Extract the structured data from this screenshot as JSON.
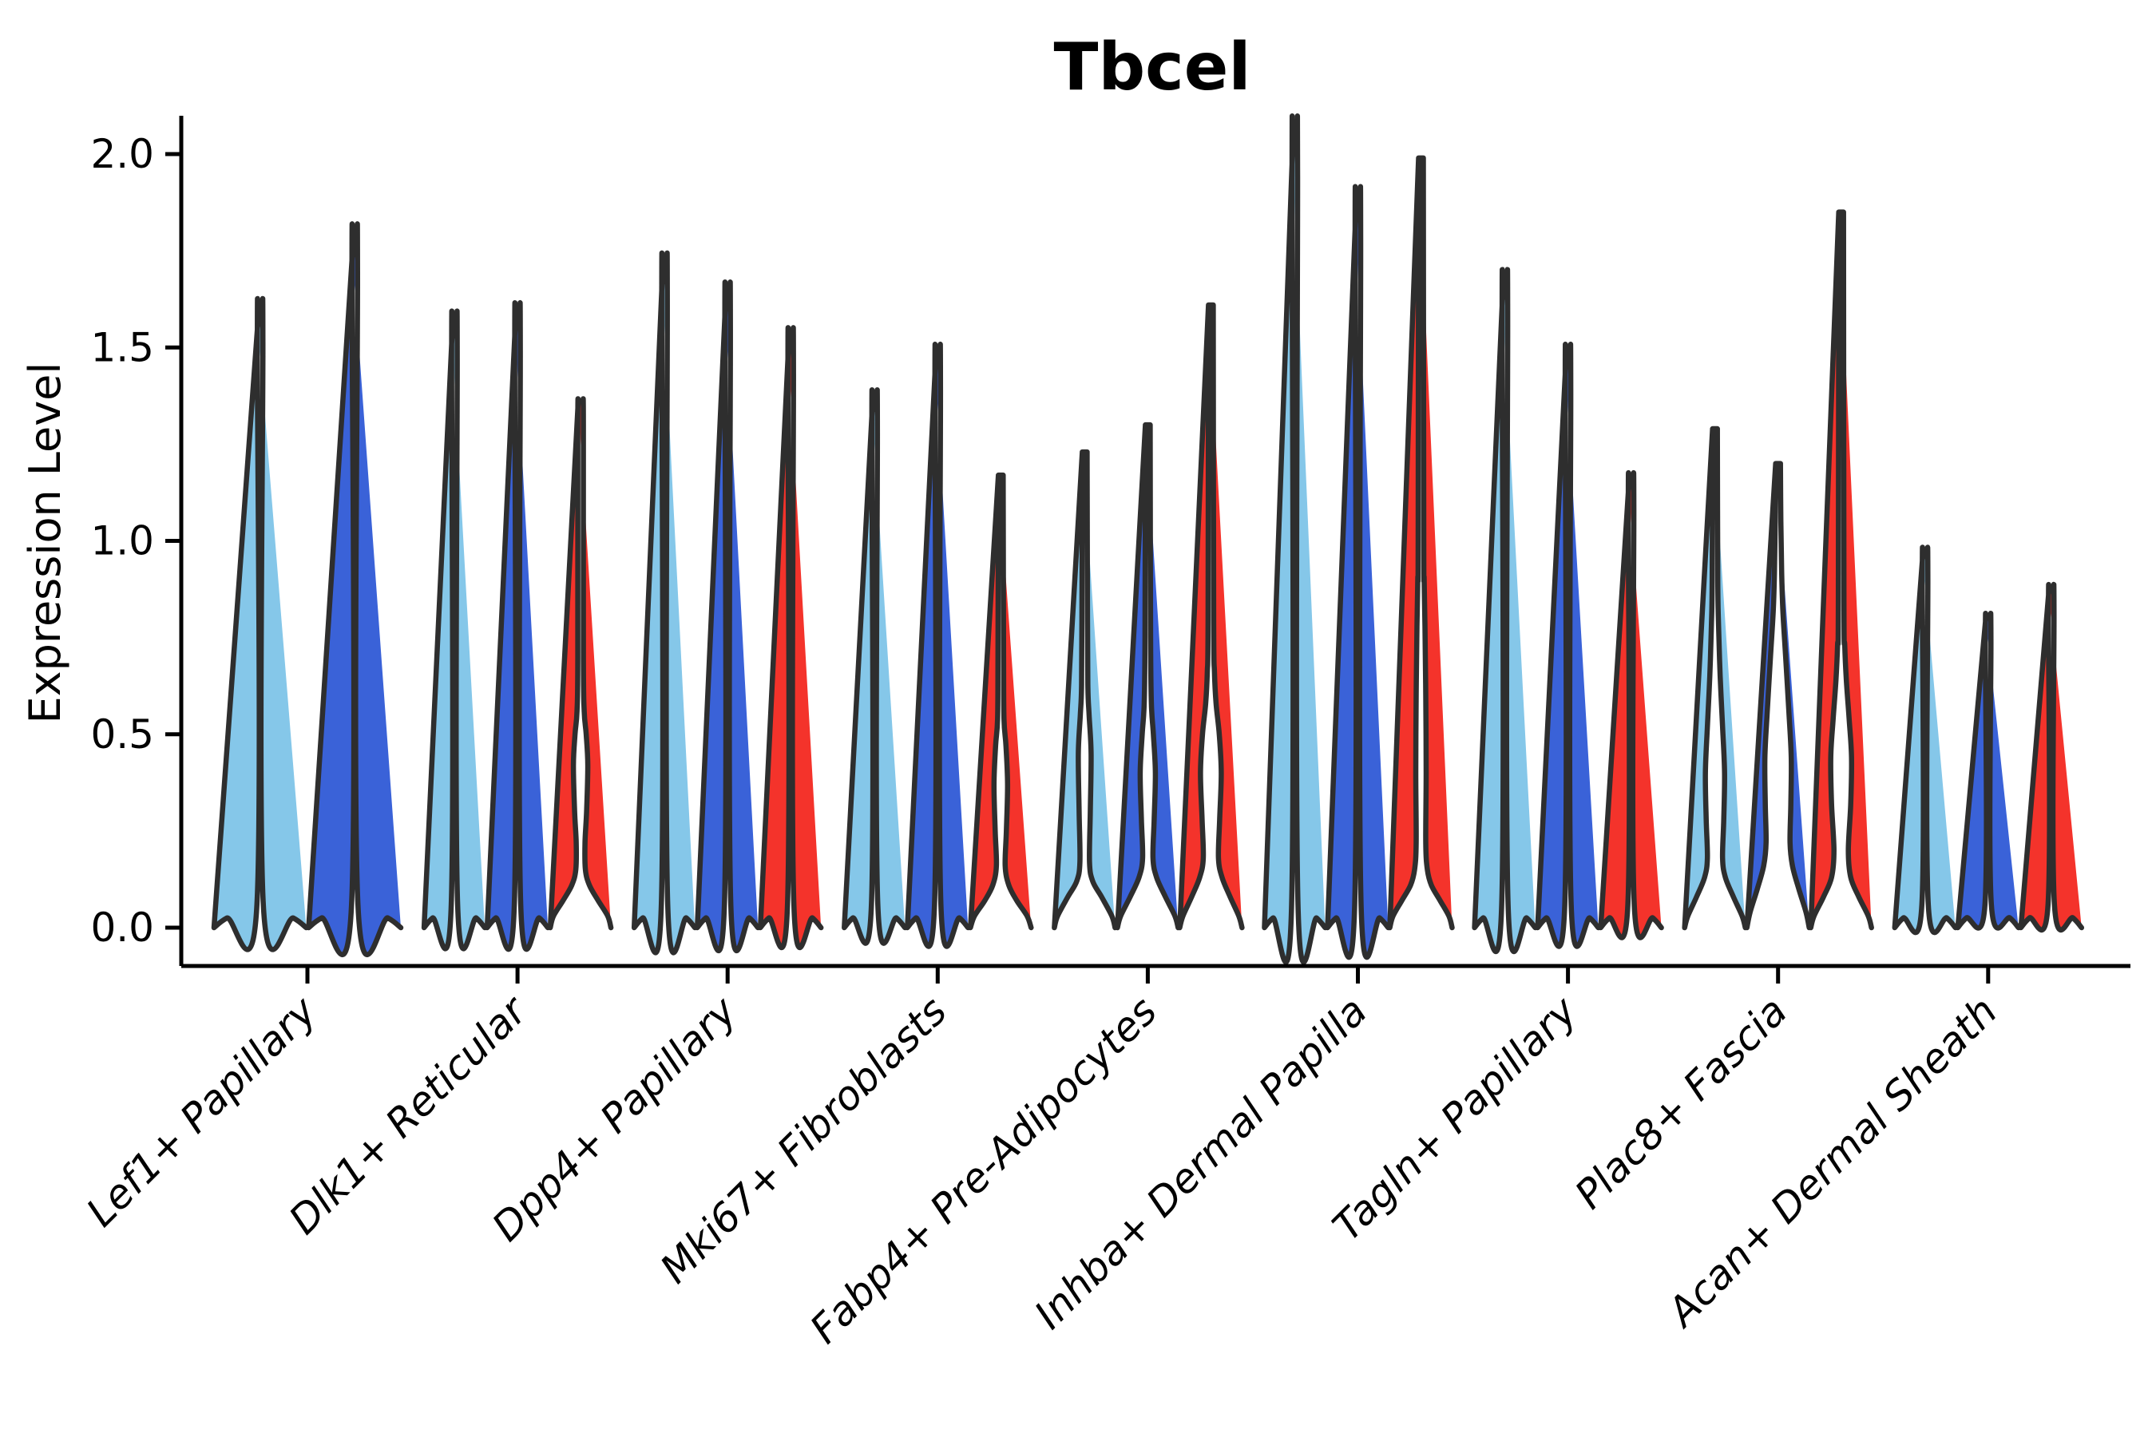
{
  "page": {
    "background": "#ffffff"
  },
  "chart_data": {
    "type": "violin",
    "title": "Tbcel",
    "xlabel": "",
    "ylabel": "Expression Level",
    "ylim": [
      0.0,
      2.05
    ],
    "yticks": [
      "0.0",
      "0.5",
      "1.0",
      "1.5",
      "2.0"
    ],
    "ytick_values": [
      0.0,
      0.5,
      1.0,
      1.5,
      2.0
    ],
    "grid": "off",
    "legend": "none",
    "colors": {
      "light_blue": "#85C7E9",
      "dark_blue": "#3A62D8",
      "red": "#F4332B",
      "outline": "#2E2E2E"
    },
    "categories": [
      "Lef1+ Papillary",
      "Dlk1+ Reticular",
      "Dpp4+ Papillary",
      "Mki67+ Fibroblasts",
      "Fabp4+ Pre-Adipocytes",
      "Inhba+ Dermal Papilla",
      "Tagln+ Papillary",
      "Plac8+ Fascia",
      "Acan+ Dermal Sheath"
    ],
    "groups": [
      {
        "label": "Lef1+ Papillary",
        "violins": [
          {
            "color": "light_blue",
            "max": 1.56,
            "shape": "needle"
          },
          {
            "color": "dark_blue",
            "max": 1.74,
            "shape": "needle"
          }
        ]
      },
      {
        "label": "Dlk1+ Reticular",
        "violins": [
          {
            "color": "light_blue",
            "max": 1.53,
            "shape": "needle"
          },
          {
            "color": "dark_blue",
            "max": 1.55,
            "shape": "needle"
          },
          {
            "color": "red",
            "max": 1.36,
            "shape": "bulge",
            "profile": [
              [
                0,
                38
              ],
              [
                0.03,
                34
              ],
              [
                0.07,
                22
              ],
              [
                0.11,
                11
              ],
              [
                0.15,
                6
              ],
              [
                0.22,
                5.5
              ],
              [
                0.3,
                7.5
              ],
              [
                0.42,
                9
              ],
              [
                0.5,
                7
              ],
              [
                0.56,
                4.5
              ],
              [
                0.7,
                3.5
              ],
              [
                1.3,
                3.5
              ],
              [
                1.36,
                3
              ]
            ]
          }
        ]
      },
      {
        "label": "Dpp4+ Papillary",
        "violins": [
          {
            "color": "light_blue",
            "max": 1.67,
            "shape": "needle"
          },
          {
            "color": "dark_blue",
            "max": 1.6,
            "shape": "needle"
          },
          {
            "color": "red",
            "max": 1.49,
            "shape": "needle"
          }
        ]
      },
      {
        "label": "Mki67+ Fibroblasts",
        "violins": [
          {
            "color": "light_blue",
            "max": 1.34,
            "shape": "needle"
          },
          {
            "color": "dark_blue",
            "max": 1.45,
            "shape": "needle"
          },
          {
            "color": "red",
            "max": 1.17,
            "shape": "bulge",
            "profile": [
              [
                0,
                38
              ],
              [
                0.03,
                33
              ],
              [
                0.07,
                20
              ],
              [
                0.11,
                10
              ],
              [
                0.16,
                5.5
              ],
              [
                0.25,
                7
              ],
              [
                0.37,
                8.5
              ],
              [
                0.47,
                6.5
              ],
              [
                0.54,
                4
              ],
              [
                0.7,
                3.5
              ],
              [
                1.17,
                3
              ]
            ]
          }
        ]
      },
      {
        "label": "Fabp4+ Pre-Adipocytes",
        "violins": [
          {
            "color": "light_blue",
            "max": 1.23,
            "shape": "bulge",
            "profile": [
              [
                0,
                38
              ],
              [
                0.03,
                34
              ],
              [
                0.08,
                21
              ],
              [
                0.12,
                10
              ],
              [
                0.17,
                6
              ],
              [
                0.3,
                7
              ],
              [
                0.45,
                8
              ],
              [
                0.55,
                5.5
              ],
              [
                0.62,
                4
              ],
              [
                0.8,
                3.5
              ],
              [
                1.23,
                3
              ]
            ]
          },
          {
            "color": "dark_blue",
            "max": 1.3,
            "shape": "bulge",
            "profile": [
              [
                0,
                38
              ],
              [
                0.03,
                34
              ],
              [
                0.08,
                22
              ],
              [
                0.13,
                11
              ],
              [
                0.18,
                6.5
              ],
              [
                0.28,
                8
              ],
              [
                0.4,
                9.5
              ],
              [
                0.5,
                7
              ],
              [
                0.58,
                4.5
              ],
              [
                0.75,
                3.5
              ],
              [
                1.3,
                3
              ]
            ]
          },
          {
            "color": "red",
            "max": 1.61,
            "shape": "bulge",
            "profile": [
              [
                0,
                39
              ],
              [
                0.03,
                35
              ],
              [
                0.08,
                24
              ],
              [
                0.13,
                14
              ],
              [
                0.18,
                9.5
              ],
              [
                0.28,
                11
              ],
              [
                0.4,
                13
              ],
              [
                0.5,
                10.5
              ],
              [
                0.58,
                6.5
              ],
              [
                0.66,
                4.5
              ],
              [
                0.8,
                3.5
              ],
              [
                1.61,
                3
              ]
            ]
          }
        ]
      },
      {
        "label": "Inhba+ Dermal Papilla",
        "violins": [
          {
            "color": "light_blue",
            "max": 2.0,
            "shape": "needle"
          },
          {
            "color": "dark_blue",
            "max": 1.83,
            "shape": "needle"
          },
          {
            "color": "red",
            "max": 1.99,
            "shape": "bulge",
            "profile": [
              [
                0,
                39
              ],
              [
                0.03,
                35
              ],
              [
                0.07,
                24
              ],
              [
                0.11,
                13
              ],
              [
                0.15,
                8
              ],
              [
                0.22,
                6
              ],
              [
                0.4,
                6.5
              ],
              [
                0.6,
                6
              ],
              [
                0.78,
                5
              ],
              [
                0.9,
                4
              ],
              [
                1.0,
                3.5
              ],
              [
                1.99,
                3
              ]
            ]
          }
        ]
      },
      {
        "label": "Tagln+ Papillary",
        "violins": [
          {
            "color": "light_blue",
            "max": 1.63,
            "shape": "needle"
          },
          {
            "color": "dark_blue",
            "max": 1.45,
            "shape": "needle"
          },
          {
            "color": "red",
            "max": 1.14,
            "shape": "needle"
          }
        ]
      },
      {
        "label": "Plac8+ Fascia",
        "violins": [
          {
            "color": "light_blue",
            "max": 1.29,
            "shape": "bulge",
            "profile": [
              [
                0,
                38
              ],
              [
                0.03,
                34
              ],
              [
                0.08,
                23
              ],
              [
                0.13,
                13
              ],
              [
                0.18,
                9.5
              ],
              [
                0.28,
                11
              ],
              [
                0.4,
                12
              ],
              [
                0.52,
                9.5
              ],
              [
                0.65,
                6.5
              ],
              [
                0.78,
                4.5
              ],
              [
                0.9,
                3.5
              ],
              [
                1.29,
                3
              ]
            ]
          },
          {
            "color": "dark_blue",
            "max": 1.2,
            "shape": "bulge",
            "profile": [
              [
                0,
                39
              ],
              [
                0.04,
                35
              ],
              [
                0.1,
                26
              ],
              [
                0.16,
                18
              ],
              [
                0.22,
                15
              ],
              [
                0.32,
                16
              ],
              [
                0.44,
                16.5
              ],
              [
                0.56,
                13.5
              ],
              [
                0.7,
                9.5
              ],
              [
                0.82,
                6
              ],
              [
                0.92,
                4.5
              ],
              [
                1.05,
                3.5
              ],
              [
                1.2,
                3
              ]
            ]
          },
          {
            "color": "red",
            "max": 1.85,
            "shape": "bulge",
            "profile": [
              [
                0,
                38
              ],
              [
                0.03,
                34
              ],
              [
                0.08,
                22
              ],
              [
                0.13,
                12
              ],
              [
                0.2,
                9
              ],
              [
                0.32,
                12
              ],
              [
                0.44,
                13
              ],
              [
                0.54,
                10
              ],
              [
                0.64,
                6.5
              ],
              [
                0.73,
                4.5
              ],
              [
                0.85,
                3.5
              ],
              [
                1.85,
                3
              ]
            ]
          }
        ]
      },
      {
        "label": "Acan+ Dermal Sheath",
        "violins": [
          {
            "color": "light_blue",
            "max": 0.96,
            "shape": "needle"
          },
          {
            "color": "dark_blue",
            "max": 0.8,
            "shape": "needle"
          },
          {
            "color": "red",
            "max": 0.87,
            "shape": "needle"
          }
        ]
      }
    ]
  }
}
